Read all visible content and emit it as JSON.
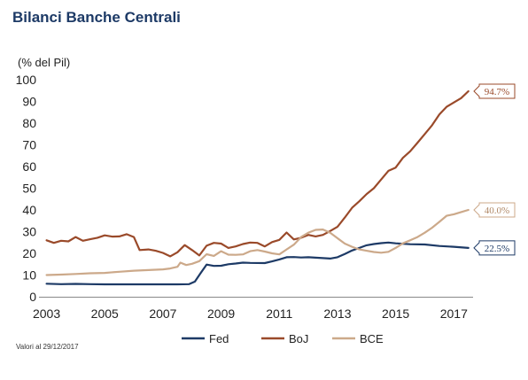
{
  "chart_data": {
    "type": "line",
    "title": "Bilanci Banche Centrali",
    "ylabel": "(% del Pil)",
    "xlabel": "",
    "ylim": [
      0,
      100
    ],
    "xlim": [
      2002.8,
      2017.6
    ],
    "yticks": [
      0,
      10,
      20,
      30,
      40,
      50,
      60,
      70,
      80,
      90,
      100
    ],
    "xticks": [
      2003,
      2005,
      2007,
      2009,
      2011,
      2013,
      2015,
      2017
    ],
    "grid": false,
    "legend_position": "bottom",
    "note": "Valori al 29/12/2017",
    "series": [
      {
        "name": "Fed",
        "color": "#1d3a66",
        "end_label": "22.5%",
        "points": [
          [
            2003.0,
            6
          ],
          [
            2003.5,
            5.8
          ],
          [
            2004.0,
            5.9
          ],
          [
            2004.5,
            5.8
          ],
          [
            2005.0,
            5.7
          ],
          [
            2005.5,
            5.7
          ],
          [
            2006.0,
            5.7
          ],
          [
            2006.5,
            5.7
          ],
          [
            2007.0,
            5.7
          ],
          [
            2007.5,
            5.7
          ],
          [
            2007.9,
            5.8
          ],
          [
            2008.1,
            7
          ],
          [
            2008.3,
            11
          ],
          [
            2008.5,
            14.8
          ],
          [
            2008.75,
            14.2
          ],
          [
            2009.0,
            14.3
          ],
          [
            2009.25,
            15
          ],
          [
            2009.5,
            15.3
          ],
          [
            2009.75,
            15.7
          ],
          [
            2010.0,
            15.6
          ],
          [
            2010.5,
            15.5
          ],
          [
            2010.75,
            16.3
          ],
          [
            2011.0,
            17.2
          ],
          [
            2011.25,
            18.2
          ],
          [
            2011.5,
            18.3
          ],
          [
            2011.75,
            18.1
          ],
          [
            2012.0,
            18.2
          ],
          [
            2012.5,
            17.8
          ],
          [
            2012.75,
            17.6
          ],
          [
            2013.0,
            18.2
          ],
          [
            2013.25,
            19.7
          ],
          [
            2013.5,
            21.3
          ],
          [
            2013.75,
            22.5
          ],
          [
            2014.0,
            23.7
          ],
          [
            2014.25,
            24.3
          ],
          [
            2014.5,
            24.7
          ],
          [
            2014.75,
            25
          ],
          [
            2015.0,
            24.6
          ],
          [
            2015.5,
            24.2
          ],
          [
            2016.0,
            24.1
          ],
          [
            2016.5,
            23.4
          ],
          [
            2017.0,
            23
          ],
          [
            2017.5,
            22.5
          ]
        ]
      },
      {
        "name": "BoJ",
        "color": "#9a4a2a",
        "end_label": "94.7%",
        "points": [
          [
            2003.0,
            26
          ],
          [
            2003.25,
            24.8
          ],
          [
            2003.5,
            25.8
          ],
          [
            2003.75,
            25.5
          ],
          [
            2004.0,
            27.5
          ],
          [
            2004.25,
            25.8
          ],
          [
            2004.5,
            26.5
          ],
          [
            2004.75,
            27.2
          ],
          [
            2005.0,
            28.3
          ],
          [
            2005.25,
            27.7
          ],
          [
            2005.5,
            27.8
          ],
          [
            2005.75,
            28.8
          ],
          [
            2006.0,
            27.5
          ],
          [
            2006.2,
            21.5
          ],
          [
            2006.5,
            21.8
          ],
          [
            2006.75,
            21.2
          ],
          [
            2007.0,
            20.2
          ],
          [
            2007.25,
            18.6
          ],
          [
            2007.5,
            20.5
          ],
          [
            2007.75,
            23.8
          ],
          [
            2008.0,
            21.5
          ],
          [
            2008.25,
            19
          ],
          [
            2008.5,
            23.5
          ],
          [
            2008.75,
            24.8
          ],
          [
            2009.0,
            24.5
          ],
          [
            2009.25,
            22.5
          ],
          [
            2009.5,
            23.2
          ],
          [
            2009.75,
            24.3
          ],
          [
            2010.0,
            25
          ],
          [
            2010.25,
            24.8
          ],
          [
            2010.5,
            23.2
          ],
          [
            2010.75,
            25.2
          ],
          [
            2011.0,
            26.2
          ],
          [
            2011.25,
            29.6
          ],
          [
            2011.5,
            26.4
          ],
          [
            2011.75,
            27.2
          ],
          [
            2012.0,
            28.5
          ],
          [
            2012.25,
            27.8
          ],
          [
            2012.5,
            28.5
          ],
          [
            2012.75,
            30.3
          ],
          [
            2013.0,
            32.2
          ],
          [
            2013.25,
            36.5
          ],
          [
            2013.5,
            41
          ],
          [
            2013.75,
            44
          ],
          [
            2014.0,
            47.3
          ],
          [
            2014.25,
            50
          ],
          [
            2014.5,
            54
          ],
          [
            2014.75,
            58
          ],
          [
            2015.0,
            59.5
          ],
          [
            2015.25,
            64
          ],
          [
            2015.5,
            67
          ],
          [
            2015.75,
            71
          ],
          [
            2016.0,
            75
          ],
          [
            2016.25,
            79
          ],
          [
            2016.5,
            84
          ],
          [
            2016.75,
            87.5
          ],
          [
            2017.0,
            89.5
          ],
          [
            2017.25,
            91.5
          ],
          [
            2017.5,
            94.7
          ]
        ]
      },
      {
        "name": "BCE",
        "color": "#cca98a",
        "end_label": "40.0%",
        "points": [
          [
            2003.0,
            10
          ],
          [
            2003.5,
            10.2
          ],
          [
            2004.0,
            10.5
          ],
          [
            2004.5,
            10.8
          ],
          [
            2005.0,
            11
          ],
          [
            2005.5,
            11.5
          ],
          [
            2006.0,
            12
          ],
          [
            2006.5,
            12.3
          ],
          [
            2007.0,
            12.6
          ],
          [
            2007.25,
            13
          ],
          [
            2007.5,
            13.8
          ],
          [
            2007.6,
            15.7
          ],
          [
            2007.8,
            14.6
          ],
          [
            2008.0,
            15.2
          ],
          [
            2008.25,
            16.4
          ],
          [
            2008.5,
            19.6
          ],
          [
            2008.75,
            18.8
          ],
          [
            2009.0,
            21
          ],
          [
            2009.25,
            19.4
          ],
          [
            2009.5,
            19.3
          ],
          [
            2009.75,
            19.5
          ],
          [
            2010.0,
            21
          ],
          [
            2010.25,
            21.5
          ],
          [
            2010.5,
            20.8
          ],
          [
            2010.75,
            20
          ],
          [
            2011.0,
            19.5
          ],
          [
            2011.25,
            21.8
          ],
          [
            2011.5,
            24
          ],
          [
            2011.75,
            27.5
          ],
          [
            2012.0,
            29.5
          ],
          [
            2012.25,
            30.8
          ],
          [
            2012.5,
            31
          ],
          [
            2012.75,
            29.5
          ],
          [
            2013.0,
            27
          ],
          [
            2013.25,
            24.5
          ],
          [
            2013.5,
            23
          ],
          [
            2013.75,
            21.8
          ],
          [
            2014.0,
            21.2
          ],
          [
            2014.25,
            20.6
          ],
          [
            2014.5,
            20.3
          ],
          [
            2014.75,
            20.7
          ],
          [
            2015.0,
            22.5
          ],
          [
            2015.25,
            24.6
          ],
          [
            2015.5,
            26
          ],
          [
            2015.75,
            27.5
          ],
          [
            2016.0,
            29.5
          ],
          [
            2016.25,
            31.8
          ],
          [
            2016.5,
            34.5
          ],
          [
            2016.75,
            37.3
          ],
          [
            2017.0,
            38
          ],
          [
            2017.25,
            39
          ],
          [
            2017.5,
            40
          ]
        ]
      }
    ]
  }
}
